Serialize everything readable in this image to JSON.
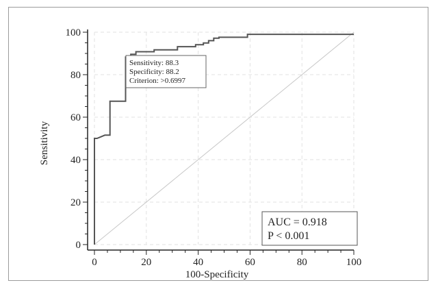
{
  "chart_data": {
    "type": "line",
    "xlabel": "100-Specificity",
    "ylabel": "Sensitivity",
    "xlim": [
      0,
      100
    ],
    "ylim": [
      0,
      100
    ],
    "x_ticks": [
      "0",
      "20",
      "40",
      "60",
      "80",
      "100"
    ],
    "y_ticks": [
      "0",
      "20",
      "40",
      "60",
      "80",
      "100"
    ],
    "grid": true,
    "series": [
      {
        "x": [
          0,
          0,
          1,
          4,
          6,
          6,
          12,
          12,
          14,
          14,
          16,
          16,
          23,
          23,
          32,
          32,
          39,
          39,
          42,
          42,
          44,
          44,
          46,
          46,
          48,
          48,
          59,
          59,
          100
        ],
        "y": [
          0,
          50,
          50,
          51.5,
          51.5,
          67.5,
          67.5,
          88.3,
          88.3,
          89.6,
          89.6,
          90.8,
          90.8,
          91.7,
          91.7,
          93.2,
          93.2,
          94.1,
          94.1,
          94.9,
          94.9,
          96,
          96,
          97.2,
          97.2,
          97.6,
          97.6,
          99,
          99
        ]
      },
      {
        "x": [
          0,
          100
        ],
        "y": [
          0,
          100
        ]
      }
    ],
    "criterion_box": {
      "sensitivity": "Sensitivity: 88.3",
      "specificity": "Specificity: 88.2",
      "criterion": "Criterion: >0.6997"
    },
    "stats": {
      "auc": "AUC = 0.918",
      "p": "P < 0.001"
    }
  }
}
